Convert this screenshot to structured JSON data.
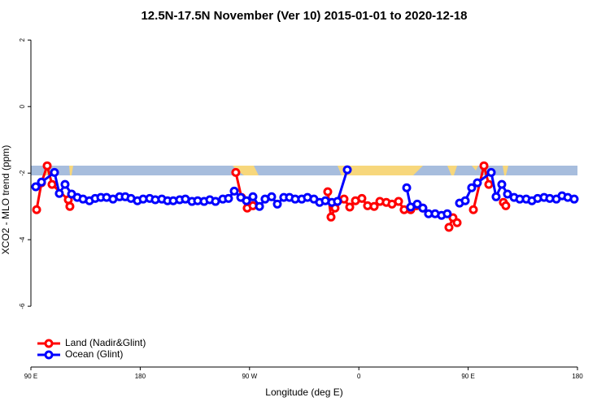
{
  "chart_data": {
    "type": "line",
    "title": "12.5N-17.5N November (Ver 10)   2015-01-01 to 2020-12-18",
    "x_label": "Longitude (deg E)",
    "y_label": "XCO2 - MLO trend (ppm)",
    "xlim": [
      90,
      540
    ],
    "ylim": [
      -7.9,
      2.3
    ],
    "xticks": [
      {
        "value": 90,
        "label": "90 E"
      },
      {
        "value": 180,
        "label": "180"
      },
      {
        "value": 270,
        "label": "90 W"
      },
      {
        "value": 360,
        "label": "0"
      },
      {
        "value": 450,
        "label": "90 E"
      },
      {
        "value": 540,
        "label": "180"
      }
    ],
    "yticks": [
      -6,
      -4,
      -2,
      0,
      2
    ],
    "legend": "bottom-left",
    "series": [
      {
        "name": "Land (Nadir&Glint)",
        "color": "#ff0000",
        "x": [
          94.7,
          98.7,
          103.4,
          107.4,
          120.8,
          122.1,
          null,
          258.7,
          263.4,
          268.1,
          272.8,
          null,
          334.4,
          337.1,
          340.4,
          347.8,
          352.5,
          357.2,
          362.5,
          367.2,
          372.6,
          377.3,
          382.6,
          387.3,
          392.7,
          397.3,
          402.7,
          407.4,
          412.7,
          null,
          434.2,
          437.5,
          440.9,
          null,
          454.3,
          463.0,
          467.0,
          null,
          479.0,
          481.0
        ],
        "values": [
          -3.1,
          -2.29,
          -1.78,
          -2.34,
          -2.8,
          -3.0,
          null,
          -1.98,
          -2.73,
          -3.05,
          -2.98,
          null,
          -2.56,
          -3.32,
          -3.05,
          -2.78,
          -3.02,
          -2.83,
          -2.76,
          -2.98,
          -3.0,
          -2.85,
          -2.88,
          -2.93,
          -2.85,
          -3.1,
          -3.1,
          -2.98,
          -3.05,
          null,
          -3.63,
          -3.34,
          -3.49,
          null,
          -3.1,
          -1.78,
          -2.34,
          null,
          -2.88,
          -2.98
        ]
      },
      {
        "name": "Ocean (Glint)",
        "color": "#0000ff",
        "x": [
          94.0,
          98.7,
          109.4,
          113.4,
          118.1,
          123.5,
          128.2,
          132.9,
          138.2,
          142.9,
          147.6,
          152.3,
          157.6,
          163.0,
          167.7,
          172.4,
          177.7,
          182.4,
          187.8,
          192.4,
          197.8,
          202.5,
          207.2,
          212.5,
          217.2,
          222.6,
          227.3,
          232.6,
          237.3,
          242.0,
          248.0,
          252.7,
          257.4,
          262.8,
          267.5,
          272.8,
          278.2,
          282.8,
          288.2,
          292.9,
          298.2,
          302.9,
          307.6,
          313.0,
          317.7,
          323.0,
          327.7,
          332.4,
          337.8,
          342.4,
          350.5,
          null,
          399.4,
          402.7,
          408.1,
          412.7,
          417.4,
          422.8,
          428.1,
          432.8,
          null,
          442.9,
          447.6,
          452.9,
          457.6,
          469.0,
          473.0,
          477.7,
          482.4,
          487.8,
          492.5,
          497.8,
          502.5,
          507.2,
          512.5,
          517.2,
          522.6,
          527.3,
          532.0,
          537.3
        ],
        "values": [
          -2.41,
          -2.27,
          -1.98,
          -2.61,
          -2.34,
          -2.63,
          -2.73,
          -2.78,
          -2.83,
          -2.76,
          -2.73,
          -2.73,
          -2.78,
          -2.71,
          -2.71,
          -2.76,
          -2.83,
          -2.78,
          -2.76,
          -2.8,
          -2.78,
          -2.83,
          -2.83,
          -2.8,
          -2.78,
          -2.85,
          -2.83,
          -2.85,
          -2.8,
          -2.85,
          -2.78,
          -2.76,
          -2.54,
          -2.73,
          -2.83,
          -2.71,
          -3.0,
          -2.78,
          -2.71,
          -2.93,
          -2.73,
          -2.73,
          -2.78,
          -2.78,
          -2.73,
          -2.78,
          -2.88,
          -2.83,
          -2.88,
          -2.85,
          -1.9,
          null,
          -2.44,
          -3.02,
          -2.93,
          -3.05,
          -3.22,
          -3.22,
          -3.27,
          -3.22,
          null,
          -2.9,
          -2.83,
          -2.44,
          -2.29,
          -1.98,
          -2.71,
          -2.34,
          -2.63,
          -2.73,
          -2.78,
          -2.78,
          -2.83,
          -2.76,
          -2.73,
          -2.76,
          -2.78,
          -2.68,
          -2.73,
          -2.78
        ]
      }
    ]
  }
}
